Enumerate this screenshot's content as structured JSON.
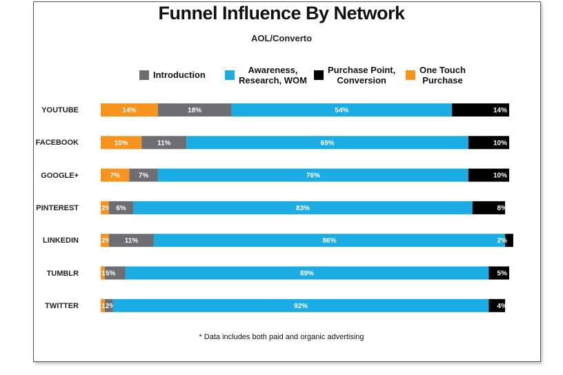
{
  "chart_data": {
    "type": "bar",
    "orientation": "horizontal",
    "stacked": true,
    "title": "Funnel Influence By Network",
    "subtitle": "AOL/Converto",
    "categories": [
      "YOUTUBE",
      "FACEBOOK",
      "GOOGLE+",
      "PINTEREST",
      "LINKEDIN",
      "TUMBLR",
      "TWITTER"
    ],
    "series": [
      {
        "name": "One Touch Purchase",
        "color": "#f7941d",
        "values": [
          14,
          10,
          7,
          2,
          2,
          1,
          1
        ],
        "labels": [
          "14%",
          "10%",
          "7%",
          "2%",
          "2%",
          "1%",
          "1%"
        ]
      },
      {
        "name": "Introduction",
        "color": "#6d6e71",
        "values": [
          18,
          11,
          7,
          6,
          11,
          5,
          2
        ],
        "labels": [
          "18%",
          "11%",
          "7%",
          "6%",
          "11%",
          "5%",
          "2%"
        ]
      },
      {
        "name": "Awareness, Research, WOM",
        "color": "#1cace4",
        "values": [
          54,
          69,
          76,
          83,
          86,
          89,
          92
        ],
        "labels": [
          "54%",
          "69%",
          "76%",
          "83%",
          "86%",
          "89%",
          "92%"
        ]
      },
      {
        "name": "Purchase Point, Conversion",
        "color": "#000000",
        "values": [
          14,
          10,
          10,
          8,
          2,
          5,
          4
        ],
        "labels": [
          "14%",
          "10%",
          "10%",
          "8%",
          "2%",
          "5%",
          "4%"
        ]
      }
    ],
    "legend": [
      {
        "label_lines": [
          "Introduction"
        ],
        "color": "#6d6e71"
      },
      {
        "label_lines": [
          "Awareness,",
          "Research, WOM"
        ],
        "color": "#1cace4"
      },
      {
        "label_lines": [
          "Purchase Point,",
          "Conversion"
        ],
        "color": "#000000"
      },
      {
        "label_lines": [
          "One Touch",
          "Purchase"
        ],
        "color": "#f7941d"
      }
    ],
    "legend_position": "top",
    "grid": false,
    "footnote": "* Data includes both paid and organic advertising"
  }
}
